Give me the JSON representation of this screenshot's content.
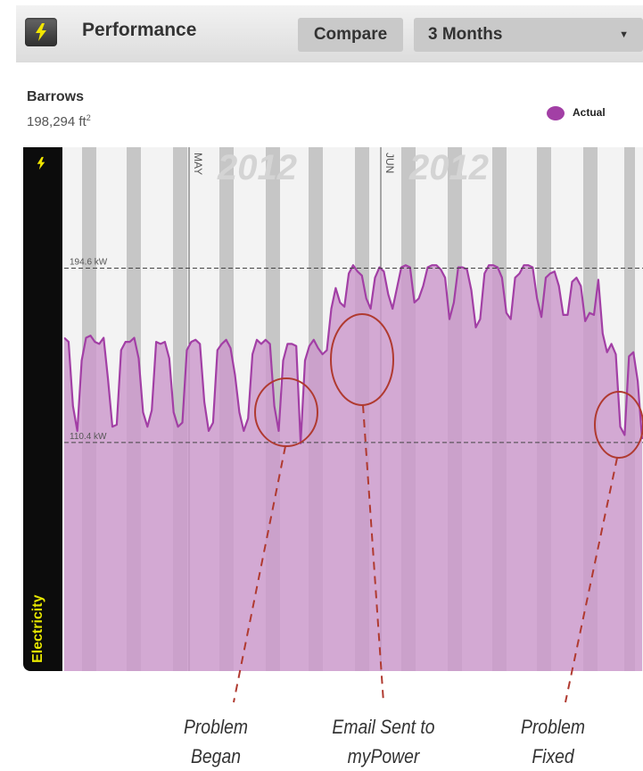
{
  "header": {
    "title": "Performance",
    "compare_label": "Compare",
    "range_label": "3 Months",
    "icon": "lightning-icon"
  },
  "site": {
    "name": "Barrows",
    "area_value": "198,294 ft",
    "area_unit_exponent": "2"
  },
  "legend": {
    "actual_label": "Actual",
    "actual_color": "#a23fa5"
  },
  "sidebar": {
    "label": "Electricity",
    "icon": "lightning-icon",
    "label_color": "#e6e600"
  },
  "chart_data": {
    "type": "area",
    "series": [
      {
        "name": "Actual",
        "color": "#a23fa5",
        "fill": "#cc99cc",
        "values": [
          161,
          159,
          128,
          116,
          150,
          161,
          162,
          159,
          158,
          161,
          141,
          118,
          119,
          155,
          159,
          159,
          161,
          151,
          125,
          118,
          126,
          159,
          158,
          159,
          151,
          125,
          118,
          120,
          155,
          159,
          160,
          158,
          130,
          116,
          120,
          155,
          158,
          160,
          156,
          143,
          125,
          116,
          122,
          153,
          160,
          158,
          160,
          158,
          128,
          116,
          150,
          158,
          158,
          157,
          110,
          150,
          157,
          160,
          156,
          153,
          155,
          175,
          185,
          178,
          176,
          192,
          196,
          193,
          191,
          180,
          175,
          190,
          195,
          193,
          182,
          175,
          185,
          195,
          196,
          195,
          178,
          180,
          186,
          195,
          196,
          196,
          194,
          190,
          170,
          178,
          195,
          195,
          194,
          184,
          166,
          170,
          192,
          196,
          196,
          195,
          190,
          173,
          170,
          190,
          192,
          196,
          196,
          195,
          180,
          171,
          190,
          192,
          193,
          186,
          172,
          172,
          188,
          190,
          186,
          169,
          173,
          172,
          189,
          163,
          154,
          158,
          153,
          118,
          114,
          152,
          154,
          140,
          112
        ]
      }
    ],
    "reference_lines": [
      {
        "value": 194.6,
        "label": "194.6 kW"
      },
      {
        "value": 110.4,
        "label": "110.4 kW"
      }
    ],
    "month_labels": [
      {
        "label": "MAY",
        "year": "2012"
      },
      {
        "label": "JUN",
        "year": "2012"
      }
    ],
    "annotations": [
      {
        "lines": [
          "Problem",
          "Began"
        ]
      },
      {
        "lines": [
          "Email Sent to",
          "myPower"
        ]
      },
      {
        "lines": [
          "Problem",
          "Fixed"
        ]
      }
    ],
    "ylabel": "",
    "ylim": [
      0,
      253
    ]
  }
}
